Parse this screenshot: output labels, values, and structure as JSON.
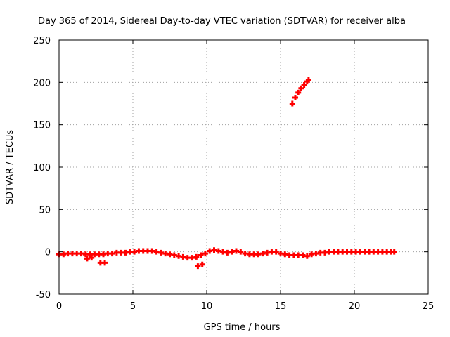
{
  "chart_data": {
    "type": "scatter",
    "title": "Day 365 of 2014, Sidereal Day-to-day VTEC variation (SDTVAR) for receiver alba",
    "xlabel": "GPS time / hours",
    "ylabel": "SDTVAR / TECUs",
    "xlim": [
      0,
      25
    ],
    "ylim": [
      -50,
      250
    ],
    "xticks": [
      "0",
      "5",
      "10",
      "15",
      "20",
      "25"
    ],
    "yticks": [
      "-50",
      "0",
      "50",
      "100",
      "150",
      "200",
      "250"
    ],
    "grid": true,
    "legend": "none",
    "marker_color": "#ff0000",
    "grid_color": "#a0a0a0",
    "series": [
      {
        "name": "",
        "x": [
          0.0,
          0.3,
          0.6,
          0.9,
          1.2,
          1.5,
          1.8,
          2.1,
          2.4,
          2.7,
          3.0,
          3.3,
          3.6,
          3.9,
          4.2,
          4.5,
          4.8,
          5.1,
          5.4,
          5.7,
          6.0,
          6.3,
          6.6,
          6.9,
          7.2,
          7.5,
          7.8,
          8.1,
          8.4,
          8.7,
          9.0,
          9.3,
          9.6,
          9.9,
          10.2,
          10.5,
          10.8,
          11.1,
          11.4,
          11.7,
          12.0,
          12.3,
          12.6,
          12.9,
          13.2,
          13.5,
          13.8,
          14.1,
          14.4,
          14.7,
          15.0,
          15.3,
          15.6,
          15.9,
          16.2,
          16.5,
          16.8,
          17.1,
          17.4,
          17.7,
          18.0,
          18.3,
          18.6,
          18.9,
          19.2,
          19.5,
          19.8,
          20.1,
          20.4,
          20.7,
          21.0,
          21.3,
          21.6,
          21.9,
          22.2,
          22.5,
          22.7,
          1.9,
          2.2,
          2.8,
          3.1,
          9.4,
          9.7,
          15.8,
          16.0,
          16.2,
          16.4,
          16.6,
          16.8,
          16.9
        ],
        "y": [
          -3,
          -3,
          -2,
          -2,
          -2,
          -2,
          -3,
          -3,
          -3,
          -3,
          -3,
          -2,
          -2,
          -1,
          -1,
          -1,
          0,
          0,
          1,
          1,
          1,
          1,
          0,
          -1,
          -2,
          -3,
          -4,
          -5,
          -6,
          -7,
          -7,
          -6,
          -4,
          -2,
          1,
          2,
          1,
          0,
          -1,
          0,
          1,
          0,
          -2,
          -3,
          -3,
          -3,
          -2,
          -1,
          0,
          0,
          -2,
          -3,
          -4,
          -4,
          -4,
          -4,
          -5,
          -3,
          -2,
          -1,
          -1,
          0,
          0,
          0,
          0,
          0,
          0,
          0,
          0,
          0,
          0,
          0,
          0,
          0,
          0,
          0,
          0,
          -8,
          -7,
          -13,
          -13,
          -17,
          -15,
          175,
          182,
          188,
          193,
          197,
          201,
          203
        ]
      }
    ]
  }
}
